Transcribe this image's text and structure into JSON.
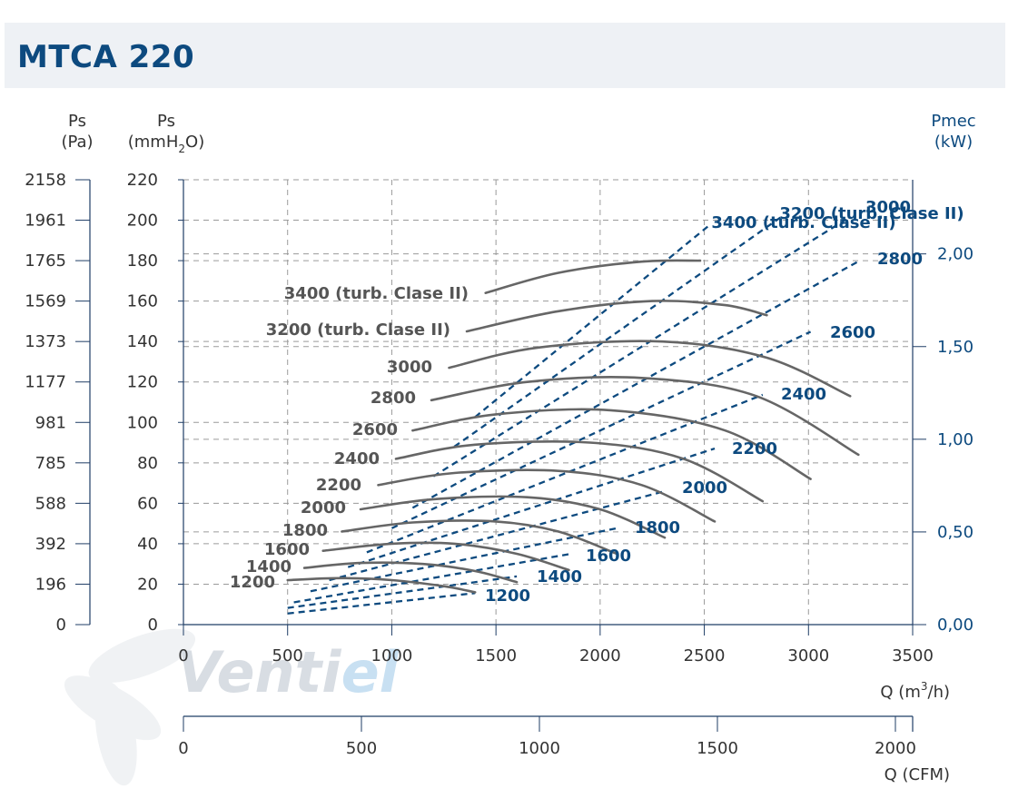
{
  "header": {
    "title": "MTCA 220"
  },
  "chart_data": {
    "type": "line",
    "title": "MTCA 220",
    "xlabel": "Q (m3/h)",
    "xlabel_parts": {
      "pre": "Q (m",
      "sup": "3",
      "post": "/h)"
    },
    "x2label": "Q (CFM)",
    "ylabel_pa": {
      "line1": "Ps",
      "line2": "(Pa)"
    },
    "ylabel_mm": {
      "line1": "Ps",
      "pre": "(mmH",
      "sub": "2",
      "post": "O)"
    },
    "ylabel_kw": {
      "line1": "Pmec",
      "line2": "(kW)"
    },
    "xlim": [
      0,
      3500
    ],
    "ylim": [
      0,
      220
    ],
    "kw_lim": [
      0,
      2.4
    ],
    "cfm_lim": [
      0,
      2000
    ],
    "x_ticks": [
      0,
      500,
      1000,
      1500,
      2000,
      2500,
      3000,
      3500
    ],
    "y_ticks": [
      0,
      20,
      40,
      60,
      80,
      100,
      120,
      140,
      160,
      180,
      200,
      220
    ],
    "pa_ticks": [
      "0",
      "196",
      "392",
      "588",
      "785",
      "981",
      "1177",
      "1373",
      "1569",
      "1765",
      "1961",
      "2158"
    ],
    "kw_ticks": [
      {
        "value": 0,
        "label": "0,00"
      },
      {
        "value": 0.5,
        "label": "0,50"
      },
      {
        "value": 1.0,
        "label": "1,00"
      },
      {
        "value": 1.5,
        "label": "1,50"
      },
      {
        "value": 2.0,
        "label": "2,00"
      }
    ],
    "cfm_ticks": [
      0,
      500,
      1000,
      1500,
      2000
    ],
    "pressure_series": [
      {
        "name": "1200",
        "label": "1200",
        "x": [
          500,
          750,
          1000,
          1250,
          1400
        ],
        "y": [
          22,
          23,
          22,
          19,
          16
        ]
      },
      {
        "name": "1400",
        "label": "1400",
        "x": [
          580,
          850,
          1150,
          1400,
          1600
        ],
        "y": [
          28,
          30.5,
          30,
          26.5,
          21
        ]
      },
      {
        "name": "1600",
        "label": "1600",
        "x": [
          670,
          1000,
          1300,
          1600,
          1850
        ],
        "y": [
          36.5,
          40,
          40,
          35,
          27
        ]
      },
      {
        "name": "1800",
        "label": "1800",
        "x": [
          760,
          1100,
          1500,
          1800,
          2080
        ],
        "y": [
          46,
          50.5,
          51,
          46,
          35
        ]
      },
      {
        "name": "2000",
        "label": "2000",
        "x": [
          850,
          1200,
          1650,
          2000,
          2310
        ],
        "y": [
          57,
          62,
          63,
          57,
          43
        ]
      },
      {
        "name": "2200",
        "label": "2200",
        "x": [
          935,
          1300,
          1800,
          2200,
          2550
        ],
        "y": [
          69,
          75,
          76,
          69,
          51
        ]
      },
      {
        "name": "2400",
        "label": "2400",
        "x": [
          1020,
          1400,
          1950,
          2400,
          2780
        ],
        "y": [
          82,
          89,
          90,
          82,
          61
        ]
      },
      {
        "name": "2600",
        "label": "2600",
        "x": [
          1100,
          1500,
          2050,
          2600,
          3010
        ],
        "y": [
          96,
          104,
          106,
          96,
          72
        ]
      },
      {
        "name": "2800",
        "label": "2800",
        "x": [
          1190,
          1650,
          2200,
          2750,
          3240
        ],
        "y": [
          111,
          120,
          122,
          113,
          84
        ]
      },
      {
        "name": "3000",
        "label": "3000",
        "x": [
          1275,
          1700,
          2300,
          2800,
          3200
        ],
        "y": [
          127,
          137,
          140,
          132,
          113
        ]
      },
      {
        "name": "3200 (turb. Clase II)",
        "label": "3200 (turb. Clase II)",
        "x": [
          1360,
          1800,
          2250,
          2600,
          2800
        ],
        "y": [
          145,
          155,
          160,
          158,
          153
        ]
      },
      {
        "name": "3400 (turb. Clase II)",
        "label": "3400 (turb. Clase II)",
        "x": [
          1450,
          1800,
          2200,
          2480
        ],
        "y": [
          164,
          174,
          179.5,
          180
        ]
      }
    ],
    "power_series": [
      {
        "name": "1200",
        "label": "1200",
        "x": [
          500,
          1400
        ],
        "kw": [
          0.06,
          0.17
        ]
      },
      {
        "name": "1400",
        "label": "1400",
        "x": [
          500,
          1600
        ],
        "kw": [
          0.09,
          0.26
        ]
      },
      {
        "name": "1600",
        "label": "1600",
        "x": [
          530,
          1850
        ],
        "kw": [
          0.12,
          0.38
        ]
      },
      {
        "name": "1800",
        "label": "1800",
        "x": [
          610,
          2080
        ],
        "kw": [
          0.18,
          0.52
        ]
      },
      {
        "name": "2000",
        "label": "2000",
        "x": [
          700,
          2310
        ],
        "kw": [
          0.24,
          0.72
        ]
      },
      {
        "name": "2200",
        "label": "2200",
        "x": [
          790,
          2550
        ],
        "kw": [
          0.31,
          0.95
        ]
      },
      {
        "name": "2400",
        "label": "2400",
        "x": [
          880,
          2780
        ],
        "kw": [
          0.39,
          1.24
        ]
      },
      {
        "name": "2600",
        "label": "2600",
        "x": [
          1000,
          3010
        ],
        "kw": [
          0.52,
          1.58
        ]
      },
      {
        "name": "2800",
        "label": "2800",
        "x": [
          1100,
          3240
        ],
        "kw": [
          0.63,
          1.96
        ]
      },
      {
        "name": "3000",
        "label": "3000",
        "x": [
          1200,
          3200
        ],
        "kw": [
          0.8,
          2.2
        ]
      },
      {
        "name": "3200 (turb. Clase II)",
        "label": "3200 (turb. Clase II)",
        "x": [
          1300,
          2870
        ],
        "kw": [
          0.96,
          2.2
        ]
      },
      {
        "name": "3400 (turb. Clase II)",
        "label": "3400 (turb. Clase II)",
        "x": [
          1400,
          2530
        ],
        "kw": [
          1.12,
          2.16
        ]
      }
    ],
    "watermark": {
      "part1": "Venti",
      "part2": "el"
    },
    "colors": {
      "pressure": "#666666",
      "power": "#0d4a7f",
      "grid": "#9a9a9a",
      "axis": "#1f3d66",
      "watermark": "#d8dde3",
      "watermark_accent": "#c8e0f2"
    }
  }
}
